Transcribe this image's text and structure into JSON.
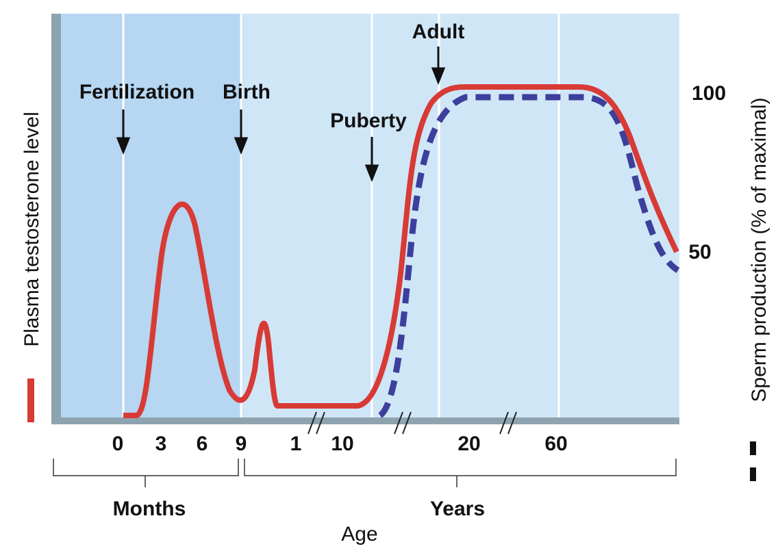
{
  "annotations": {
    "fertilization": "Fertilization",
    "birth": "Birth",
    "puberty": "Puberty",
    "adult": "Adult"
  },
  "x_ticks": [
    "0",
    "3",
    "6",
    "9",
    "1",
    "10",
    "20",
    "60"
  ],
  "brackets": {
    "months": "Months",
    "years": "Years"
  },
  "x_axis_label": "Age",
  "left_axis_label": "Plasma testosterone level",
  "right_axis_label": "Sperm production (% of maximal)",
  "right_ticks": [
    "100",
    "50"
  ]
}
